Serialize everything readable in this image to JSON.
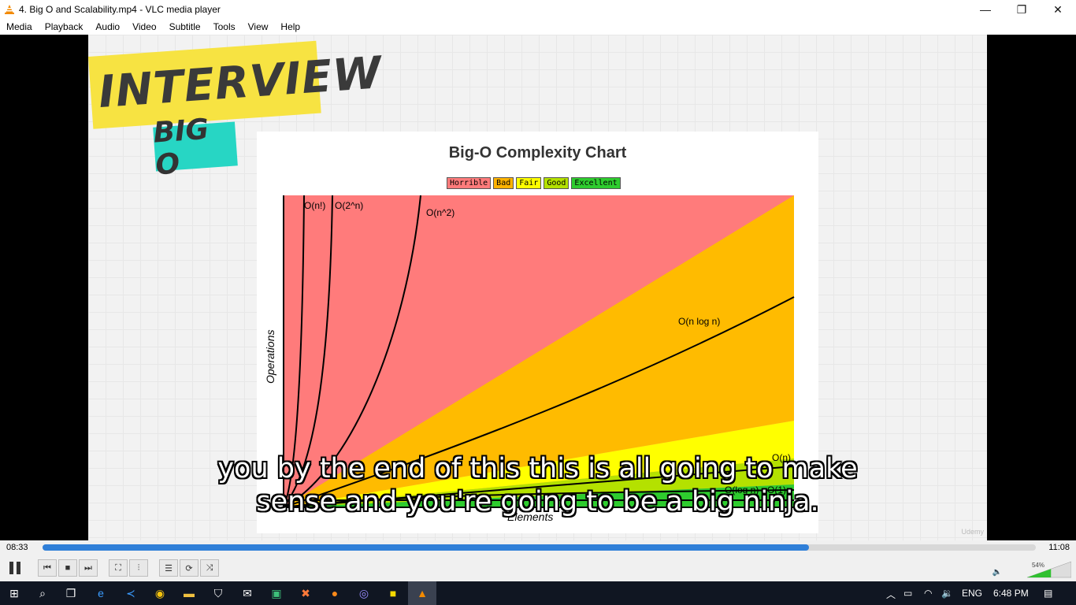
{
  "window": {
    "title": "4. Big O and Scalability.mp4 - VLC media player",
    "minimize": "—",
    "maximize": "❐",
    "close": "✕"
  },
  "menu": [
    "Media",
    "Playback",
    "Audio",
    "Video",
    "Subtitle",
    "Tools",
    "View",
    "Help"
  ],
  "video": {
    "banner": "INTERVIEW",
    "badge": "BIG O",
    "chart": {
      "title": "Big-O Complexity Chart",
      "legend": [
        {
          "label": "Horrible",
          "color": "#ff7b7b"
        },
        {
          "label": "Bad",
          "color": "#ffb300"
        },
        {
          "label": "Fair",
          "color": "#ffff00"
        },
        {
          "label": "Good",
          "color": "#b4e100"
        },
        {
          "label": "Excellent",
          "color": "#2ecc2e"
        }
      ],
      "ylabel": "Operations",
      "xlabel": "Elements",
      "curves": [
        "O(n!)",
        "O(2^n)",
        "O(n^2)",
        "O(n log n)",
        "O(n)",
        "O(log n)",
        "O(1)"
      ]
    },
    "subtitle": [
      "you by the end of this this is all going to make",
      "sense and you're going to be a big ninja."
    ],
    "watermark": "Udemy"
  },
  "player": {
    "elapsed": "08:33",
    "duration": "11:08",
    "progress_fraction": 0.772,
    "volume_percent": 54,
    "volume_label": "54%"
  },
  "taskbar": {
    "language": "ENG",
    "clock": "6:48 PM"
  }
}
